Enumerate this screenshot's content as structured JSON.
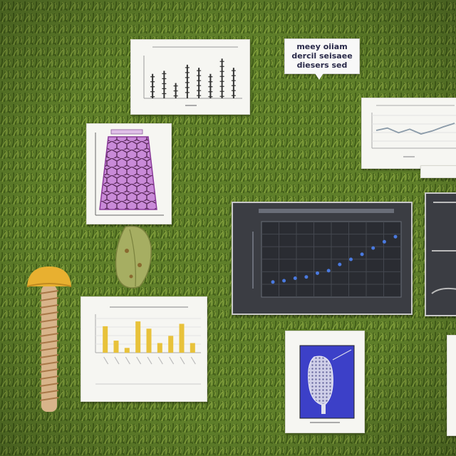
{
  "scene": {
    "grass_color": "#5f7f2a",
    "grass_dark": "#3f5a17",
    "grass_light": "#8aa640",
    "paper_color": "#f6f6f2",
    "dark_panel_color": "#3b3d43"
  },
  "speech_bubble": {
    "lines": [
      "meey oiiam",
      "dercil seisaee",
      "diesers sed"
    ]
  },
  "chart_data": [
    {
      "type": "bar",
      "title": "",
      "values": [
        4,
        4.5,
        2.5,
        5.5,
        5,
        4,
        6.5,
        5
      ],
      "ylim": [
        0,
        7
      ],
      "color": "#333333"
    },
    {
      "type": "line",
      "title": "",
      "x": [
        0,
        1,
        2,
        3,
        4,
        5,
        6,
        7
      ],
      "values": [
        3,
        3.4,
        2.6,
        3.2,
        2.4,
        2.9,
        3.6,
        4.2
      ],
      "ylim": [
        0,
        6
      ],
      "color": "#8a9aa8"
    },
    {
      "type": "scatter",
      "title": "",
      "x": [
        1,
        2,
        3,
        4,
        5,
        6,
        7,
        8,
        9,
        10,
        11,
        12
      ],
      "values": [
        1.2,
        1.3,
        1.5,
        1.6,
        1.9,
        2.1,
        2.6,
        3.0,
        3.4,
        3.9,
        4.4,
        4.8
      ],
      "ylim": [
        0,
        6
      ],
      "color": "#4a7ae0"
    },
    {
      "type": "bar",
      "title": "",
      "values": [
        5.5,
        2.5,
        1,
        6.5,
        5,
        2,
        3.5,
        6,
        2
      ],
      "ylim": [
        0,
        8
      ],
      "color": "#e8c23a"
    }
  ],
  "decor": {
    "mushroom_cap_color": "#e8b030",
    "honeycomb_color": "#c98ad8",
    "blue_panel_color": "#3c40c8"
  }
}
